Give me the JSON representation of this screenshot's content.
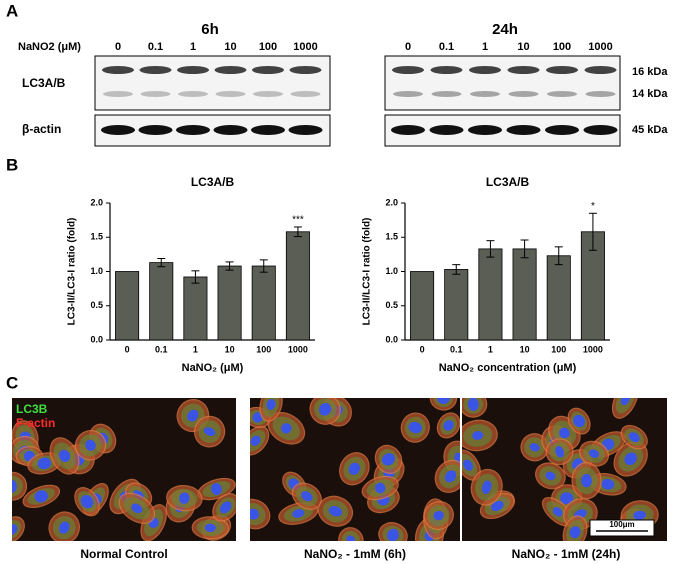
{
  "panel_labels": [
    "A",
    "B",
    "C"
  ],
  "blot": {
    "time_labels": [
      "6h",
      "24h"
    ],
    "concentration_label": "NaNO2 (μM)",
    "lanes": [
      "0",
      "0.1",
      "1",
      "10",
      "100",
      "1000"
    ],
    "rows": [
      "LC3A/B",
      "β-actin"
    ],
    "kda": [
      "16 kDa",
      "14 kDa",
      "45 kDa"
    ]
  },
  "chart_data": [
    {
      "type": "bar",
      "title": "LC3A/B",
      "y_label": "LC3-II/LC3-I ratio (fold)",
      "x_label": "NaNO₂ (μM)",
      "categories": [
        "0",
        "0.1",
        "1",
        "10",
        "100",
        "1000"
      ],
      "values": [
        1.0,
        1.13,
        0.92,
        1.08,
        1.08,
        1.58
      ],
      "errors": [
        0,
        0.06,
        0.09,
        0.06,
        0.09,
        0.07
      ],
      "significance": [
        null,
        null,
        null,
        null,
        null,
        "***"
      ],
      "color": "#5b5e55",
      "ylim": [
        0,
        2
      ],
      "yticks": [
        {
          "value": 0,
          "label": "0.0"
        },
        0.5,
        {
          "value": 1,
          "label": "1.0"
        },
        1.5,
        {
          "value": 2,
          "label": "2.0"
        }
      ]
    },
    {
      "type": "bar",
      "title": "LC3A/B",
      "y_label": "LC3-II/LC3-I ratio (fold)",
      "x_label": "NaNO₂ concentration (μM)",
      "categories": [
        "0",
        "0.1",
        "1",
        "10",
        "100",
        "1000"
      ],
      "values": [
        1.0,
        1.03,
        1.33,
        1.33,
        1.23,
        1.58
      ],
      "errors": [
        0,
        0.07,
        0.12,
        0.13,
        0.13,
        0.27
      ],
      "significance": [
        null,
        null,
        null,
        null,
        null,
        "*"
      ],
      "color": "#5b5e55",
      "ylim": [
        0,
        2
      ],
      "yticks": [
        {
          "value": 0,
          "label": "0.0"
        },
        0.5,
        {
          "value": 1,
          "label": "1.0"
        },
        1.5,
        {
          "value": 2,
          "label": "2.0"
        }
      ]
    }
  ],
  "images": {
    "legend": [
      "LC3B",
      "F-actin"
    ],
    "captions": [
      "Normal Control",
      "NaNO₂ - 1mM (6h)",
      "NaNO₂ - 1mM (24h)"
    ],
    "scale_bar": "100μm"
  }
}
